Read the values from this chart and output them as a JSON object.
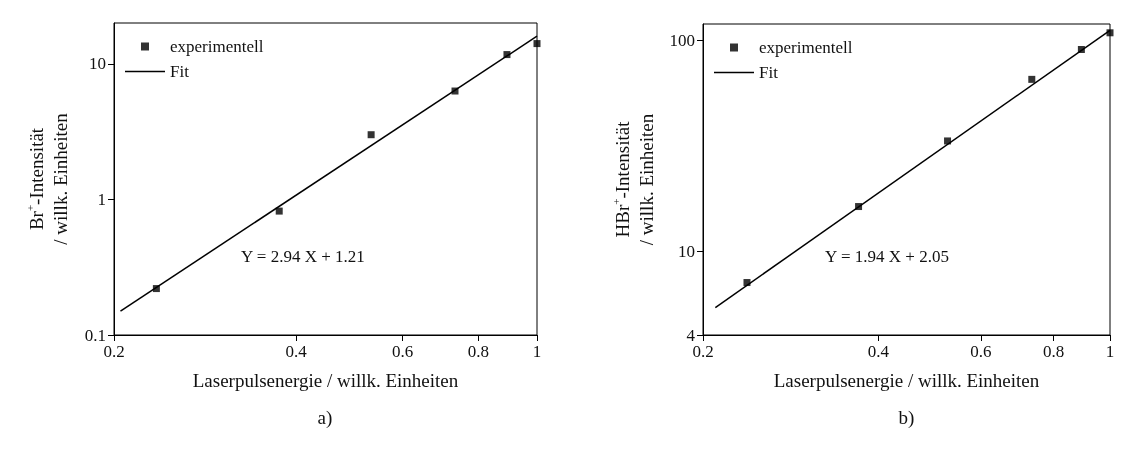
{
  "chart_data": [
    {
      "type": "scatter",
      "xlabel": "Laserpulsenergie / willk. Einheiten",
      "ylabel": "Br$^{+}$-Intensität / willk. Einheiten",
      "annotations": [
        "Y = 2.94 X + 1.21",
        "a)"
      ],
      "log": "xy",
      "xlim": [
        0.2,
        1
      ],
      "ylim": [
        0.1,
        20
      ],
      "xticks": [
        0.2,
        0.4,
        0.6,
        0.8,
        1
      ],
      "yticks": [
        0.1,
        1,
        10
      ],
      "legend": "top left",
      "series": [
        {
          "name": "experimentell",
          "type": "scatter",
          "marker": "square",
          "color": "#000000",
          "x": [
            0.235,
            0.375,
            0.532,
            0.732,
            0.892,
            1.0
          ],
          "values": [
            0.22,
            0.82,
            3.0,
            6.3,
            11.7,
            14.1
          ]
        },
        {
          "name": "Fit",
          "type": "line",
          "marker": "none",
          "color": "#000000",
          "x": [
            0.205,
            1
          ],
          "values": [
            0.15,
            16
          ]
        }
      ]
    },
    {
      "type": "scatter",
      "xlabel": "Laserpulsenergie / willk. Einheiten",
      "ylabel": "HBr$^{+}$-Intensität / willk. Einheiten",
      "annotations": [
        "Y = 1.94 X + 2.05",
        "b)"
      ],
      "log": "xy",
      "xlim": [
        0.2,
        1
      ],
      "ylim": [
        4,
        120
      ],
      "xticks": [
        0.2,
        0.4,
        0.6,
        0.8,
        1
      ],
      "yticks": [
        4,
        10,
        100
      ],
      "legend": "top left",
      "series": [
        {
          "name": "experimentell",
          "type": "scatter",
          "marker": "square",
          "color": "#000000",
          "x": [
            0.238,
            0.37,
            0.526,
            0.734,
            0.893,
            1.0
          ],
          "values": [
            7.1,
            16.3,
            33.4,
            65.5,
            90.8,
            109
          ]
        },
        {
          "name": "Fit",
          "type": "line",
          "marker": "none",
          "color": "#000000",
          "x": [
            0.21,
            1
          ],
          "values": [
            5.4,
            112
          ]
        }
      ]
    }
  ]
}
